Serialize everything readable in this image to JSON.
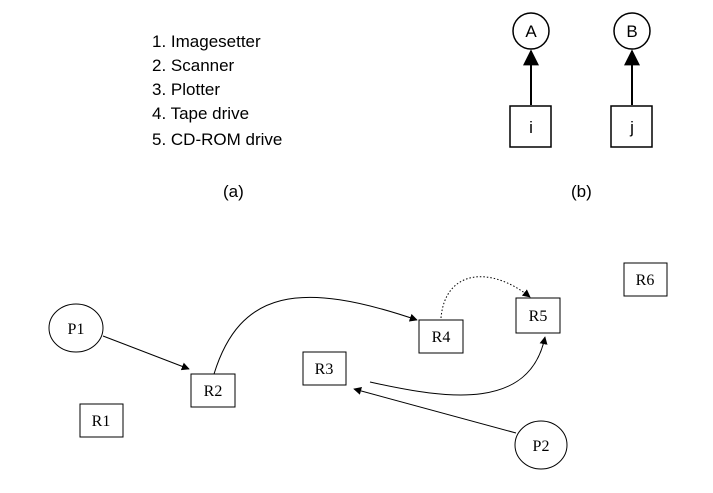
{
  "panel_a": {
    "items": [
      "1. Imagesetter",
      "2. Scanner",
      "3. Plotter",
      "4. Tape drive",
      "5. CD-ROM drive"
    ],
    "caption": "(a)"
  },
  "panel_b": {
    "nodes": [
      {
        "circle": "A",
        "box": "i"
      },
      {
        "circle": "B",
        "box": "j"
      }
    ],
    "caption": "(b)"
  },
  "graph": {
    "processes": [
      "P1",
      "P2"
    ],
    "resources": [
      "R1",
      "R2",
      "R3",
      "R4",
      "R5",
      "R6"
    ]
  }
}
